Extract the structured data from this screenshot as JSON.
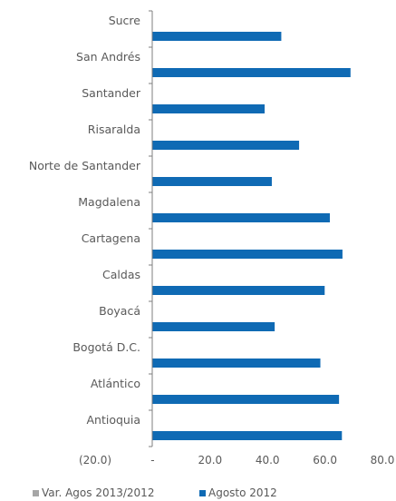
{
  "chart_data": {
    "type": "bar",
    "orientation": "horizontal",
    "title": "",
    "xlabel": "",
    "ylabel": "",
    "categories": [
      "Sucre",
      "San Andrés",
      "Santander",
      "Risaralda",
      "Norte de Santander",
      "Magdalena",
      "Cartagena",
      "Caldas",
      "Boyacá",
      "Bogotá D.C.",
      "Atlántico",
      "Antioquia"
    ],
    "series": [
      {
        "name": "Var. Agos 2013/2012",
        "color": "#a6a6a6",
        "values": [
          null,
          null,
          null,
          null,
          null,
          null,
          null,
          null,
          null,
          null,
          null,
          null
        ]
      },
      {
        "name": "Agosto 2012",
        "color": "#0f6ab4",
        "values": [
          44.8,
          68.9,
          39.0,
          51.0,
          41.5,
          61.7,
          66.1,
          59.9,
          42.5,
          58.4,
          64.9,
          65.9
        ]
      }
    ],
    "xlim": [
      -20,
      80
    ],
    "xticks": [
      -20,
      0,
      20,
      40,
      60,
      80
    ],
    "xtick_labels": [
      "(20.0)",
      "-",
      "20.0",
      "40.0",
      "60.0",
      "80.0"
    ],
    "grid": false,
    "legend_position": "bottom"
  }
}
